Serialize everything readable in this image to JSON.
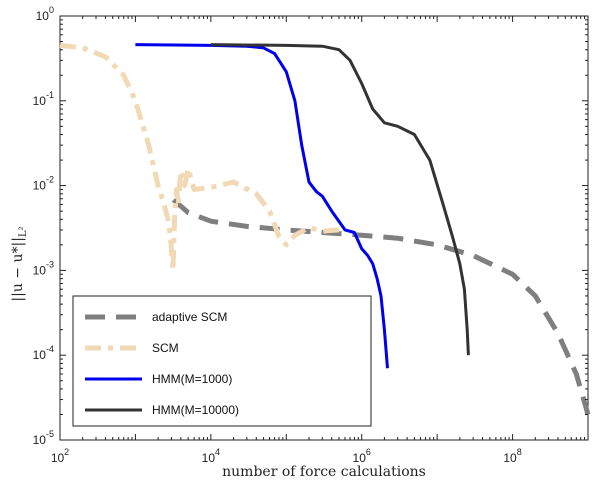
{
  "chart_data": {
    "type": "line",
    "title": "",
    "xlabel": "number of force calculations",
    "ylabel": "||u − u*||",
    "ylabel_sub": "L²",
    "xscale": "log",
    "yscale": "log",
    "xlim": [
      100,
      1000000000
    ],
    "ylim": [
      1e-05,
      1
    ],
    "x_ticks": [
      {
        "value": 100,
        "base": "10",
        "exp": "2"
      },
      {
        "value": 10000,
        "base": "10",
        "exp": "4"
      },
      {
        "value": 1000000,
        "base": "10",
        "exp": "6"
      },
      {
        "value": 100000000,
        "base": "10",
        "exp": "8"
      }
    ],
    "y_ticks": [
      {
        "value": 1e-05,
        "base": "10",
        "exp": "-5"
      },
      {
        "value": 0.0001,
        "base": "10",
        "exp": "-4"
      },
      {
        "value": 0.001,
        "base": "10",
        "exp": "-3"
      },
      {
        "value": 0.01,
        "base": "10",
        "exp": "-2"
      },
      {
        "value": 0.1,
        "base": "10",
        "exp": "-1"
      },
      {
        "value": 1,
        "base": "10",
        "exp": "0"
      }
    ],
    "grid": false,
    "legend_position": "bottom-left",
    "series": [
      {
        "name": "adaptive SCM",
        "color": "#7f7f7f",
        "style": "dashed",
        "points": [
          [
            3200,
            0.0068
          ],
          [
            5000,
            0.0048
          ],
          [
            10000,
            0.0038
          ],
          [
            30000,
            0.0033
          ],
          [
            100000,
            0.003
          ],
          [
            300000,
            0.0028
          ],
          [
            1000000,
            0.0026
          ],
          [
            3000000,
            0.0024
          ],
          [
            10000000,
            0.002
          ],
          [
            30000000,
            0.0015
          ],
          [
            100000000,
            0.0009
          ],
          [
            200000000,
            0.0005
          ],
          [
            400000000,
            0.00018
          ],
          [
            700000000,
            6e-05
          ],
          [
            1000000000,
            2e-05
          ]
        ]
      },
      {
        "name": "SCM",
        "color": "#f1d9b5",
        "style": "dash-dot",
        "points": [
          [
            100,
            0.45
          ],
          [
            200,
            0.42
          ],
          [
            400,
            0.33
          ],
          [
            700,
            0.2
          ],
          [
            1000,
            0.1
          ],
          [
            1500,
            0.03
          ],
          [
            2000,
            0.01
          ],
          [
            2400,
            0.006
          ],
          [
            2700,
            0.004
          ],
          [
            2900,
            0.0025
          ],
          [
            3000,
            0.0018
          ],
          [
            3100,
            0.0012
          ],
          [
            3150,
            0.001
          ],
          [
            3300,
            0.004
          ],
          [
            3500,
            0.009
          ],
          [
            3700,
            0.006
          ],
          [
            4000,
            0.015
          ],
          [
            4500,
            0.01
          ],
          [
            5000,
            0.016
          ],
          [
            6000,
            0.009
          ],
          [
            10000,
            0.0095
          ],
          [
            20000,
            0.011
          ],
          [
            40000,
            0.008
          ],
          [
            60000,
            0.005
          ],
          [
            80000,
            0.0025
          ],
          [
            100000,
            0.002
          ],
          [
            130000,
            0.0026
          ],
          [
            200000,
            0.0032
          ],
          [
            300000,
            0.0029
          ],
          [
            500000,
            0.003
          ]
        ]
      },
      {
        "name": "HMM(M=1000)",
        "color": "#0000ee",
        "style": "solid",
        "points": [
          [
            1000,
            0.46
          ],
          [
            10000,
            0.45
          ],
          [
            30000,
            0.44
          ],
          [
            50000,
            0.42
          ],
          [
            70000,
            0.36
          ],
          [
            100000,
            0.22
          ],
          [
            130000,
            0.1
          ],
          [
            160000,
            0.03
          ],
          [
            200000,
            0.011
          ],
          [
            250000,
            0.0085
          ],
          [
            300000,
            0.0075
          ],
          [
            400000,
            0.005
          ],
          [
            600000,
            0.003
          ],
          [
            800000,
            0.0028
          ],
          [
            1000000,
            0.0018
          ],
          [
            1200000,
            0.0015
          ],
          [
            1400000,
            0.0012
          ],
          [
            1600000,
            0.0008
          ],
          [
            1800000,
            0.0005
          ],
          [
            2000000,
            0.0002
          ],
          [
            2200000,
            7e-05
          ]
        ]
      },
      {
        "name": "HMM(M=10000)",
        "color": "#333333",
        "style": "solid",
        "points": [
          [
            10000,
            0.46
          ],
          [
            100000,
            0.45
          ],
          [
            300000,
            0.44
          ],
          [
            500000,
            0.4
          ],
          [
            700000,
            0.3
          ],
          [
            1000000,
            0.16
          ],
          [
            1400000,
            0.08
          ],
          [
            2000000,
            0.055
          ],
          [
            3000000,
            0.05
          ],
          [
            5000000,
            0.04
          ],
          [
            8000000,
            0.02
          ],
          [
            12000000,
            0.006
          ],
          [
            16000000,
            0.0025
          ],
          [
            20000000,
            0.0012
          ],
          [
            23000000,
            0.0006
          ],
          [
            25000000,
            0.0002
          ],
          [
            26000000,
            0.0001
          ]
        ]
      }
    ]
  }
}
